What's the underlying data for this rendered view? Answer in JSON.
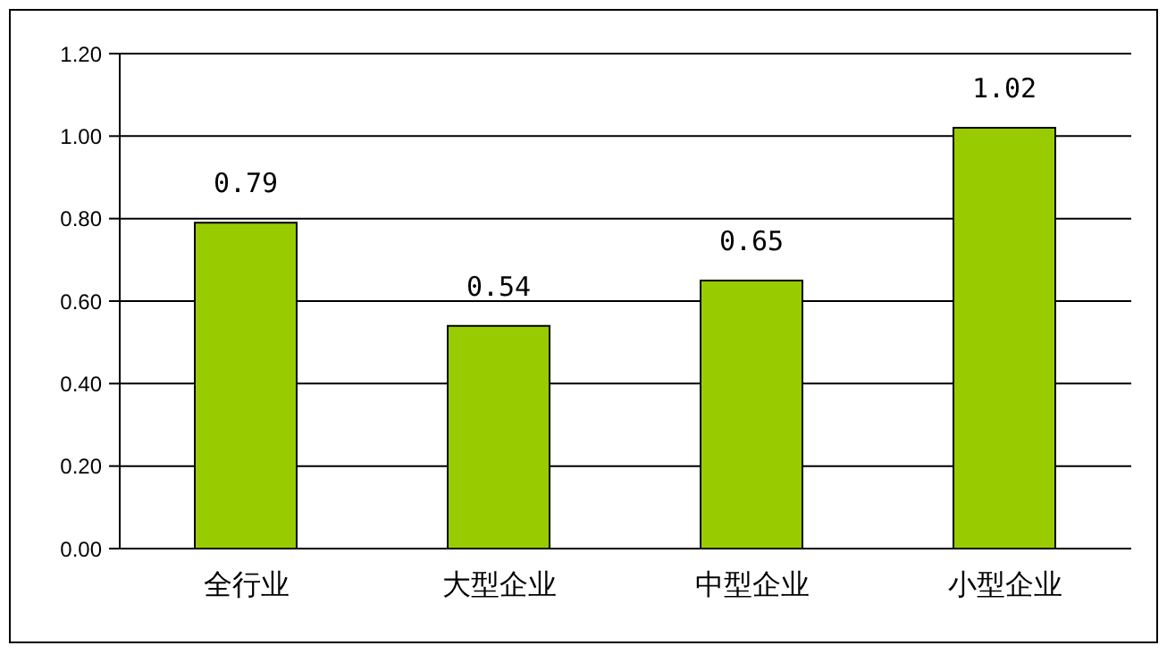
{
  "chart_data": {
    "type": "bar",
    "categories": [
      "全行业",
      "大型企业",
      "中型企业",
      "小型企业"
    ],
    "values": [
      0.79,
      0.54,
      0.65,
      1.02
    ],
    "color": "#99cc00",
    "ylim": [
      0,
      1.2
    ],
    "yticks": [
      {
        "value": 0,
        "label": "0.00"
      },
      {
        "value": 0.2,
        "label": "0.20"
      },
      {
        "value": 0.4,
        "label": "0.40"
      },
      {
        "value": 0.6,
        "label": "0.60"
      },
      {
        "value": 0.8,
        "label": "0.80"
      },
      {
        "value": 1,
        "label": "1.00"
      },
      {
        "value": 1.2,
        "label": "1.20"
      }
    ],
    "grid": "y",
    "data_labels": true
  }
}
